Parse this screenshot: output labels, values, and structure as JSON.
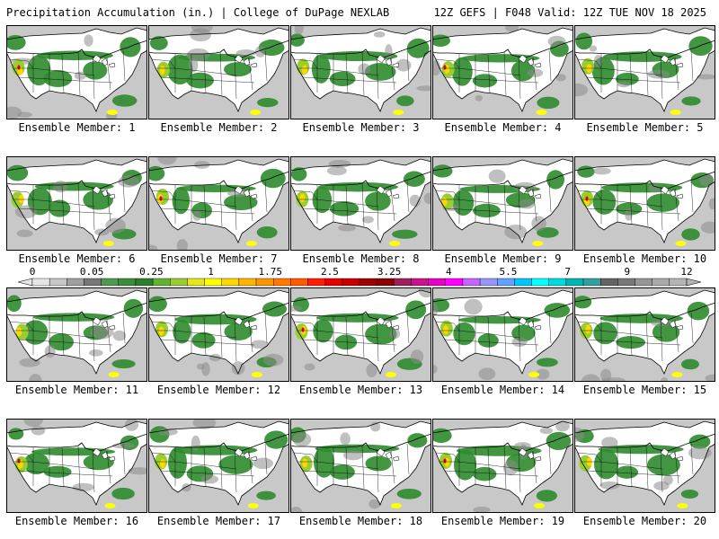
{
  "header": {
    "left": "Precipitation Accumulation (in.) | College of DuPage NEXLAB",
    "right": "12Z GEFS | F048 Valid: 12Z TUE NOV 18 2025"
  },
  "map": {
    "region": "Contiguous United States",
    "colors": {
      "ocean": "#c8c8c8",
      "land": "#ffffff",
      "boundaries": "#000000"
    }
  },
  "panels": [
    {
      "label": "Ensemble Member: 1"
    },
    {
      "label": "Ensemble Member: 2"
    },
    {
      "label": "Ensemble Member: 3"
    },
    {
      "label": "Ensemble Member: 4"
    },
    {
      "label": "Ensemble Member: 5"
    },
    {
      "label": "Ensemble Member: 6"
    },
    {
      "label": "Ensemble Member: 7"
    },
    {
      "label": "Ensemble Member: 8"
    },
    {
      "label": "Ensemble Member: 9"
    },
    {
      "label": "Ensemble Member: 10"
    },
    {
      "label": "Ensemble Member: 11"
    },
    {
      "label": "Ensemble Member: 12"
    },
    {
      "label": "Ensemble Member: 13"
    },
    {
      "label": "Ensemble Member: 14"
    },
    {
      "label": "Ensemble Member: 15"
    },
    {
      "label": "Ensemble Member: 16"
    },
    {
      "label": "Ensemble Member: 17"
    },
    {
      "label": "Ensemble Member: 18"
    },
    {
      "label": "Ensemble Member: 19"
    },
    {
      "label": "Ensemble Member: 20"
    }
  ],
  "colorbar": {
    "tick_labels": [
      "0",
      "0.05",
      "0.25",
      "1",
      "1.75",
      "2.5",
      "3.25",
      "4",
      "5.5",
      "7",
      "9",
      "12"
    ],
    "colors": [
      "#e6e6e6",
      "#c8c8c8",
      "#a0a0a0",
      "#787878",
      "#4e9a4e",
      "#3c8c3c",
      "#2e7d2e",
      "#5fb52f",
      "#9acd32",
      "#e6e619",
      "#ffff00",
      "#ffd700",
      "#ffb400",
      "#ff9600",
      "#ff7800",
      "#ff5a00",
      "#ff1e00",
      "#e60000",
      "#c80000",
      "#a00000",
      "#8b0000",
      "#a01e5a",
      "#c8148c",
      "#e600c8",
      "#ff00ff",
      "#c864ff",
      "#9696ff",
      "#64a0ff",
      "#00c8ff",
      "#00ffff",
      "#00dcdc",
      "#00b4b4",
      "#32a0a0",
      "#646464",
      "#787878",
      "#969696",
      "#aaaaaa",
      "#b4b4b4"
    ]
  }
}
